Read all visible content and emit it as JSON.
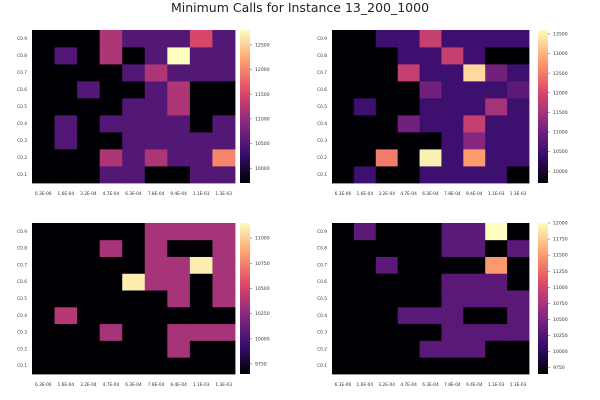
{
  "figure": {
    "title": "Minimum Calls for Instance 13_200_1000"
  },
  "palette": [
    "#000004",
    "#3b0f70",
    "#8c2981",
    "#de4968",
    "#fe9f6d",
    "#fcfdbf"
  ],
  "chart_data": [
    {
      "type": "heatmap",
      "x": [
        "6.3E-06",
        "1.6E-04",
        "3.2E-04",
        "4.7E-04",
        "6.3E-04",
        "7.8E-04",
        "9.4E-04",
        "1.1E-03",
        "1.3E-03"
      ],
      "y": [
        "C0.1",
        "C0.2",
        "C0.3",
        "C0.4",
        "C0.5",
        "C0.6",
        "C0.7",
        "C0.8",
        "C0.9"
      ],
      "clim": [
        9700,
        12800
      ],
      "colorbar_ticks": [
        10000,
        10500,
        11000,
        11500,
        12000,
        12500
      ],
      "z": [
        [
          9700,
          9700,
          9700,
          10500,
          10500,
          9700,
          9700,
          10500,
          10500
        ],
        [
          9700,
          9700,
          9700,
          11200,
          10500,
          11200,
          10500,
          10500,
          12000
        ],
        [
          9700,
          10500,
          9700,
          9700,
          10500,
          10500,
          10500,
          10500,
          10500
        ],
        [
          9700,
          10500,
          9700,
          10500,
          10500,
          10500,
          10500,
          9700,
          10500
        ],
        [
          9700,
          9700,
          9700,
          9700,
          10500,
          10500,
          11200,
          9700,
          9700
        ],
        [
          9700,
          9700,
          10500,
          9700,
          9700,
          10500,
          11200,
          9700,
          9700
        ],
        [
          9700,
          9700,
          9700,
          9700,
          10500,
          11200,
          10500,
          10500,
          10500
        ],
        [
          9700,
          10500,
          9700,
          11200,
          9700,
          10500,
          12800,
          10500,
          10500
        ],
        [
          9700,
          9700,
          9700,
          11200,
          10500,
          10500,
          10500,
          11500,
          10500
        ]
      ]
    },
    {
      "type": "heatmap",
      "x": [
        "6.3E-06",
        "1.6E-04",
        "3.2E-04",
        "4.7E-04",
        "6.3E-04",
        "7.8E-04",
        "9.4E-04",
        "1.1E-03",
        "1.3E-03"
      ],
      "y": [
        "C0.1",
        "C0.2",
        "C0.3",
        "C0.4",
        "C0.5",
        "C0.6",
        "C0.7",
        "C0.8",
        "C0.9"
      ],
      "clim": [
        9700,
        13600
      ],
      "colorbar_ticks": [
        10000,
        10500,
        11000,
        11500,
        12000,
        12500,
        13000,
        13500
      ],
      "z": [
        [
          9700,
          10500,
          9700,
          9700,
          10500,
          10500,
          10500,
          10500,
          9700
        ],
        [
          9700,
          9700,
          12500,
          9700,
          13500,
          10500,
          12800,
          10500,
          10500
        ],
        [
          9700,
          9700,
          9700,
          9700,
          9700,
          10500,
          11200,
          10500,
          10500
        ],
        [
          9700,
          9700,
          9700,
          11000,
          10500,
          10500,
          11800,
          10500,
          10500
        ],
        [
          9700,
          10500,
          9700,
          9700,
          10500,
          10500,
          10500,
          11500,
          10500
        ],
        [
          9700,
          9700,
          9700,
          9700,
          11000,
          10500,
          10500,
          10500,
          10800
        ],
        [
          9700,
          9700,
          9700,
          11800,
          10500,
          10500,
          13300,
          11000,
          10500
        ],
        [
          9700,
          9700,
          9700,
          10500,
          10500,
          11800,
          10500,
          9700,
          9700
        ],
        [
          9700,
          9700,
          10500,
          10500,
          11800,
          10500,
          10500,
          10500,
          10500
        ]
      ]
    },
    {
      "type": "heatmap",
      "x": [
        "6.3E-06",
        "1.6E-04",
        "3.2E-04",
        "4.7E-04",
        "6.3E-04",
        "7.8E-04",
        "9.4E-04",
        "1.1E-03",
        "1.3E-03"
      ],
      "y": [
        "C0.1",
        "C0.2",
        "C0.3",
        "C0.4",
        "C0.5",
        "C0.6",
        "C0.7",
        "C0.8",
        "C0.9"
      ],
      "clim": [
        9650,
        11150
      ],
      "colorbar_ticks": [
        9750,
        10000,
        10250,
        10500,
        10750,
        11000
      ],
      "z": [
        [
          9650,
          9650,
          9650,
          9650,
          9650,
          9650,
          9650,
          9650,
          9650
        ],
        [
          9650,
          9650,
          9650,
          9650,
          9650,
          9650,
          10350,
          9650,
          9650
        ],
        [
          9650,
          9650,
          9650,
          10350,
          9650,
          9650,
          10350,
          10350,
          10350
        ],
        [
          9650,
          10400,
          9650,
          9650,
          9650,
          9650,
          9650,
          9650,
          9650
        ],
        [
          9650,
          9650,
          9650,
          9650,
          9650,
          9650,
          10350,
          9650,
          10350
        ],
        [
          9650,
          9650,
          9650,
          9650,
          11100,
          10350,
          10350,
          9650,
          10350
        ],
        [
          9650,
          9650,
          9650,
          9650,
          9650,
          10350,
          10350,
          11100,
          10350
        ],
        [
          9650,
          9650,
          9650,
          10350,
          9650,
          10350,
          9650,
          9650,
          10350
        ],
        [
          9650,
          9650,
          9650,
          9650,
          9650,
          10350,
          10350,
          10350,
          10350
        ]
      ]
    },
    {
      "type": "heatmap",
      "x": [
        "6.3E-06",
        "1.6E-04",
        "3.2E-04",
        "4.7E-04",
        "6.3E-04",
        "7.8E-04",
        "9.4E-04",
        "1.1E-03",
        "1.3E-03"
      ],
      "y": [
        "C0.1",
        "C0.2",
        "C0.3",
        "C0.4",
        "C0.5",
        "C0.6",
        "C0.7",
        "C0.8",
        "C0.9"
      ],
      "clim": [
        9650,
        12000
      ],
      "colorbar_ticks": [
        9750,
        10000,
        10250,
        10500,
        10750,
        11000,
        11250,
        11500,
        11750,
        12000
      ],
      "z": [
        [
          9650,
          9650,
          9650,
          9650,
          9650,
          9650,
          9650,
          9650,
          9650
        ],
        [
          9650,
          9650,
          9650,
          9650,
          10300,
          10300,
          10300,
          9650,
          9650
        ],
        [
          9650,
          9650,
          9650,
          9650,
          9650,
          10300,
          10300,
          10300,
          10300
        ],
        [
          9650,
          9650,
          9650,
          10300,
          10300,
          10300,
          9650,
          9650,
          10300
        ],
        [
          9650,
          9650,
          9650,
          9650,
          9650,
          10300,
          10300,
          10300,
          10300
        ],
        [
          9650,
          9650,
          9650,
          9650,
          9650,
          10300,
          10300,
          10300,
          9650
        ],
        [
          9650,
          9650,
          10300,
          9650,
          9650,
          9650,
          9650,
          11500,
          9650
        ],
        [
          9650,
          9650,
          9650,
          9650,
          9650,
          10300,
          10300,
          9650,
          10300
        ],
        [
          9650,
          10300,
          9650,
          9650,
          9650,
          10300,
          10300,
          12000,
          9650
        ]
      ]
    }
  ]
}
